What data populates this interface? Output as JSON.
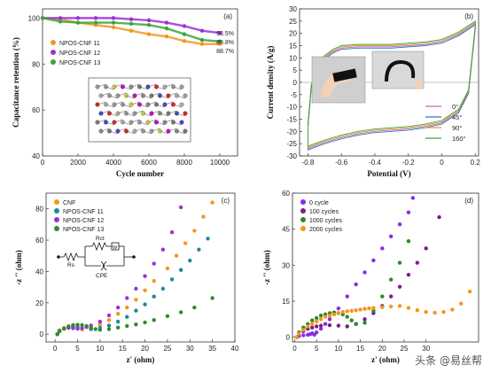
{
  "watermark": "头条 @易丝帮",
  "chart_data": [
    {
      "type": "line",
      "panel_label": "(a)",
      "xlabel": "Cycle number",
      "ylabel": "Capacitance retention (%)",
      "xlim": [
        0,
        11000
      ],
      "ylim": [
        40,
        104
      ],
      "xticks": [
        0,
        2000,
        4000,
        6000,
        8000,
        10000
      ],
      "yticks": [
        40,
        60,
        80,
        100
      ],
      "legend_position": "upper-left",
      "has_inset": true,
      "series": [
        {
          "name": "NPOS-CNF 11",
          "color": "#f7941d",
          "x": [
            0,
            1000,
            2000,
            3000,
            4000,
            5000,
            6000,
            7000,
            8000,
            9000,
            10000
          ],
          "y": [
            100,
            99.5,
            98,
            97,
            96,
            94.5,
            93,
            92,
            90,
            88.7,
            88.7
          ]
        },
        {
          "name": "NPOS-CNF 12",
          "color": "#9b30d9",
          "x": [
            0,
            1000,
            2000,
            3000,
            4000,
            5000,
            6000,
            7000,
            8000,
            9000,
            10000
          ],
          "y": [
            100,
            100,
            100,
            100,
            100,
            99.5,
            99,
            98,
            96.5,
            94.5,
            93.5
          ]
        },
        {
          "name": "NPOS-CNF 13",
          "color": "#3aa53a",
          "x": [
            0,
            1000,
            2000,
            3000,
            4000,
            5000,
            6000,
            7000,
            8000,
            9000,
            10000
          ],
          "y": [
            100,
            98.5,
            98,
            98,
            98,
            97.5,
            97,
            95.5,
            93,
            90.5,
            89.8
          ]
        }
      ],
      "end_labels": [
        "93.5%",
        "89.8%",
        "88.7%"
      ]
    },
    {
      "type": "line",
      "panel_label": "(b)",
      "xlabel": "Potential (V)",
      "ylabel": "Current density (A/g)",
      "xlim": [
        -0.85,
        0.22
      ],
      "ylim": [
        -30,
        30
      ],
      "xticks": [
        -0.8,
        -0.6,
        -0.4,
        -0.2,
        0.0,
        0.2
      ],
      "yticks": [
        -30,
        -25,
        -20,
        -15,
        -10,
        -5,
        0,
        5,
        10,
        15,
        20,
        25,
        30
      ],
      "legend_position": "lower-right",
      "has_inset_photos": true,
      "series": [
        {
          "name": "0°",
          "color": "#cc66cc",
          "offset": 0
        },
        {
          "name": "45°",
          "color": "#2a7ab5",
          "offset": -0.5
        },
        {
          "name": "90°",
          "color": "#d8a020",
          "offset": 0.5
        },
        {
          "name": "160°",
          "color": "#40a040",
          "offset": 1.0
        }
      ],
      "cv_upper": {
        "x": [
          -0.8,
          -0.78,
          -0.74,
          -0.7,
          -0.65,
          -0.6,
          -0.5,
          -0.4,
          -0.3,
          -0.2,
          -0.1,
          0.0,
          0.1,
          0.2
        ],
        "y": [
          -18,
          -2,
          6,
          10,
          12.5,
          14,
          14.5,
          14.5,
          14.5,
          15,
          15.5,
          16.5,
          19.5,
          24
        ]
      },
      "cv_lower": {
        "x": [
          -0.8,
          -0.7,
          -0.6,
          -0.5,
          -0.4,
          -0.3,
          -0.2,
          -0.1,
          0.0,
          0.1,
          0.16,
          0.2
        ],
        "y": [
          -27,
          -24.5,
          -22.5,
          -21,
          -20,
          -19.5,
          -19,
          -18,
          -16.5,
          -12,
          -4,
          22
        ]
      }
    },
    {
      "type": "scatter",
      "panel_label": "(c)",
      "xlabel": "z' (ohm)",
      "ylabel": "-z '' (ohm)",
      "xlim": [
        -2,
        40
      ],
      "ylim": [
        -5,
        90
      ],
      "xticks": [
        0,
        5,
        10,
        15,
        20,
        25,
        30,
        35,
        40
      ],
      "yticks": [
        0,
        20,
        40,
        60,
        80
      ],
      "legend_position": "upper-left",
      "has_circuit_inset": true,
      "circuit_labels": [
        "Rs",
        "Rct",
        "CPE",
        "W"
      ],
      "series": [
        {
          "name": "CNF",
          "color": "#f7941d",
          "x": [
            0.5,
            1,
            2,
            3,
            4,
            5,
            6,
            8,
            10,
            12,
            14,
            16,
            18,
            20,
            22,
            25,
            27,
            29,
            31,
            33,
            35
          ],
          "y": [
            0,
            2.5,
            4,
            4.8,
            4.5,
            3.5,
            3,
            4,
            6,
            9,
            13,
            17,
            22,
            28,
            34,
            42,
            50,
            58,
            66,
            75,
            84
          ]
        },
        {
          "name": "NPOS-CNF 11",
          "color": "#1a8a9a",
          "x": [
            0.5,
            1,
            2,
            3,
            4,
            5,
            6,
            8,
            10,
            12,
            14,
            16,
            18,
            20,
            22,
            24,
            26,
            28,
            30,
            32,
            34
          ],
          "y": [
            0,
            2,
            3.5,
            4.5,
            4.8,
            4.5,
            3.8,
            3.2,
            4,
            5.5,
            8,
            11,
            15,
            19,
            24,
            29,
            35,
            41,
            47,
            54,
            61
          ]
        },
        {
          "name": "NPOS-CNF 12",
          "color": "#9b30d9",
          "x": [
            0.5,
            1,
            2,
            3,
            4,
            5,
            6,
            7,
            8,
            10,
            12,
            14,
            16,
            18,
            20,
            22,
            24,
            26,
            28
          ],
          "y": [
            0,
            2,
            3.5,
            4,
            3.8,
            3.5,
            3.8,
            4.5,
            5.5,
            8,
            12,
            17,
            23,
            29,
            37,
            45,
            54,
            65,
            81
          ]
        },
        {
          "name": "NPOS-CNF 13",
          "color": "#2e8b2e",
          "x": [
            0.5,
            1,
            2,
            3,
            4,
            5,
            6,
            7,
            8,
            9,
            10,
            12,
            14,
            16,
            18,
            20,
            22,
            25,
            28,
            31,
            35
          ],
          "y": [
            0,
            2,
            3.5,
            5,
            5.8,
            6,
            5.8,
            5.2,
            4,
            3.2,
            2.8,
            3.2,
            4.2,
            5.2,
            6.2,
            7.5,
            9,
            11.5,
            14,
            17,
            23
          ]
        }
      ]
    },
    {
      "type": "scatter",
      "panel_label": "(d)",
      "xlabel": "z' (ohm)",
      "ylabel": "-z '' (ohm)",
      "xlim": [
        -0.5,
        42
      ],
      "ylim": [
        -2,
        60
      ],
      "xticks": [
        0,
        5,
        10,
        15,
        20,
        25,
        30
      ],
      "yticks": [
        0,
        15,
        30,
        45,
        60
      ],
      "legend_position": "upper-left",
      "series": [
        {
          "name": "0 cycle",
          "color": "#8a2be2",
          "x": [
            0.5,
            1,
            2,
            3,
            3.5,
            4,
            4.5,
            5,
            6,
            7,
            8,
            10,
            12,
            14,
            16,
            18,
            20,
            22,
            24,
            26,
            27
          ],
          "y": [
            0,
            0.5,
            0.8,
            1,
            1.2,
            1.6,
            1,
            2,
            3.5,
            5.5,
            7.5,
            12,
            17,
            22,
            27,
            32,
            37,
            42,
            47,
            52,
            58
          ]
        },
        {
          "name": "100 cycles",
          "color": "#7a1f8a",
          "x": [
            0.5,
            1,
            2,
            3,
            4,
            5,
            6,
            8,
            10,
            12,
            14,
            16,
            18,
            20,
            22,
            24,
            26,
            28,
            30,
            33
          ],
          "y": [
            0,
            1.5,
            2.5,
            3.5,
            4,
            4.5,
            4.8,
            5,
            4.8,
            4.5,
            5.5,
            7.5,
            10,
            13,
            17,
            21,
            26,
            31,
            37,
            50
          ]
        },
        {
          "name": "1000 cycles",
          "color": "#2a8a2a",
          "x": [
            0.5,
            1,
            2,
            3,
            4,
            5,
            6,
            7,
            8,
            9,
            10,
            11,
            12,
            13,
            14,
            16,
            18,
            20,
            22,
            24,
            26
          ],
          "y": [
            0,
            2,
            4,
            5.5,
            7,
            8,
            9,
            9.5,
            10,
            10.3,
            10,
            9.5,
            8.5,
            7,
            5.5,
            6,
            11,
            17,
            24,
            31,
            40
          ]
        },
        {
          "name": "2000 cycles",
          "color": "#f7941d",
          "x": [
            0.5,
            1,
            2,
            3,
            4,
            5,
            6,
            7,
            8,
            9,
            10,
            11,
            12,
            13,
            14,
            15,
            16,
            17,
            18,
            20,
            22,
            24,
            26,
            28,
            30,
            32,
            34,
            36,
            38,
            40
          ],
          "y": [
            0,
            1.5,
            3,
            4.5,
            5.5,
            6.5,
            7.5,
            8.5,
            9,
            9.5,
            10,
            10.5,
            10.8,
            11,
            11.2,
            11.5,
            11.8,
            12,
            12.2,
            12.5,
            12.8,
            13,
            12.2,
            11.2,
            10.5,
            10.2,
            10.5,
            11.5,
            14,
            19
          ]
        }
      ]
    }
  ]
}
